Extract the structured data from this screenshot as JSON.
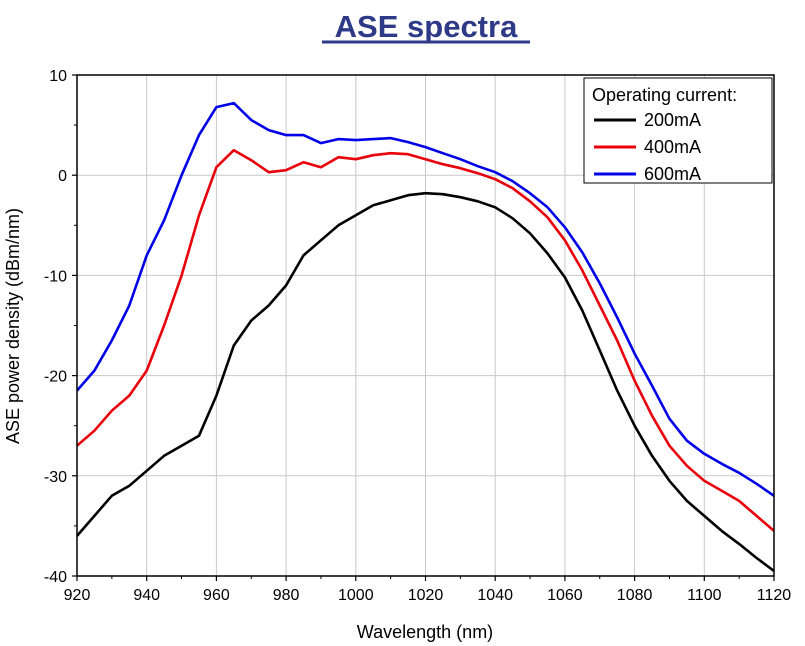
{
  "chart_data": {
    "type": "line",
    "title": "ASE spectra",
    "xlabel": "Wavelength (nm)",
    "ylabel": "ASE power density (dBm/nm)",
    "xlim": [
      920,
      1120
    ],
    "ylim": [
      -40,
      10
    ],
    "xticks": [
      920,
      940,
      960,
      980,
      1000,
      1020,
      1040,
      1060,
      1080,
      1100,
      1120
    ],
    "yticks": [
      -40,
      -30,
      -20,
      -10,
      0,
      10
    ],
    "grid": true,
    "legend": {
      "title": "Operating current:",
      "position": "top-right"
    },
    "series": [
      {
        "name": "200mA",
        "color": "#000000",
        "x": [
          920,
          925,
          930,
          935,
          940,
          945,
          950,
          955,
          960,
          965,
          970,
          975,
          980,
          985,
          990,
          995,
          1000,
          1005,
          1010,
          1015,
          1020,
          1025,
          1030,
          1035,
          1040,
          1045,
          1050,
          1055,
          1060,
          1065,
          1070,
          1075,
          1080,
          1085,
          1090,
          1095,
          1100,
          1105,
          1110,
          1115,
          1120
        ],
        "y": [
          -36,
          -34,
          -32,
          -31,
          -29.5,
          -28,
          -27,
          -26,
          -22,
          -17,
          -14.5,
          -13,
          -11,
          -8,
          -6.5,
          -5,
          -4,
          -3,
          -2.5,
          -2,
          -1.8,
          -1.9,
          -2.2,
          -2.6,
          -3.2,
          -4.3,
          -5.8,
          -7.8,
          -10.2,
          -13.5,
          -17.5,
          -21.5,
          -25,
          -28,
          -30.5,
          -32.5,
          -34,
          -35.5,
          -36.8,
          -38.2,
          -39.5
        ]
      },
      {
        "name": "400mA",
        "color": "#e8000b",
        "x": [
          920,
          925,
          930,
          935,
          940,
          945,
          950,
          955,
          960,
          965,
          970,
          975,
          980,
          985,
          990,
          995,
          1000,
          1005,
          1010,
          1015,
          1020,
          1025,
          1030,
          1035,
          1040,
          1045,
          1050,
          1055,
          1060,
          1065,
          1070,
          1075,
          1080,
          1085,
          1090,
          1095,
          1100,
          1105,
          1110,
          1115,
          1120
        ],
        "y": [
          -27,
          -25.5,
          -23.5,
          -22,
          -19.5,
          -15,
          -10,
          -4,
          0.8,
          2.5,
          1.5,
          0.3,
          0.5,
          1.3,
          0.8,
          1.8,
          1.6,
          2.0,
          2.2,
          2.1,
          1.6,
          1.1,
          0.7,
          0.2,
          -0.4,
          -1.3,
          -2.6,
          -4.2,
          -6.5,
          -9.5,
          -13,
          -16.5,
          -20.5,
          -24,
          -27,
          -29,
          -30.5,
          -31.5,
          -32.5,
          -34,
          -35.5
        ]
      },
      {
        "name": "600mA",
        "color": "#0000e8",
        "x": [
          920,
          925,
          930,
          935,
          940,
          945,
          950,
          955,
          960,
          965,
          970,
          975,
          980,
          985,
          990,
          995,
          1000,
          1005,
          1010,
          1015,
          1020,
          1025,
          1030,
          1035,
          1040,
          1045,
          1050,
          1055,
          1060,
          1065,
          1070,
          1075,
          1080,
          1085,
          1090,
          1095,
          1100,
          1105,
          1110,
          1115,
          1120
        ],
        "y": [
          -21.5,
          -19.5,
          -16.5,
          -13,
          -8,
          -4.5,
          0,
          4,
          6.8,
          7.2,
          5.5,
          4.5,
          4.0,
          4.0,
          3.2,
          3.6,
          3.5,
          3.6,
          3.7,
          3.3,
          2.8,
          2.2,
          1.6,
          0.9,
          0.3,
          -0.6,
          -1.8,
          -3.2,
          -5.2,
          -7.7,
          -10.8,
          -14.2,
          -17.8,
          -21,
          -24.3,
          -26.5,
          -27.8,
          -28.8,
          -29.7,
          -30.8,
          -32
        ]
      }
    ]
  }
}
